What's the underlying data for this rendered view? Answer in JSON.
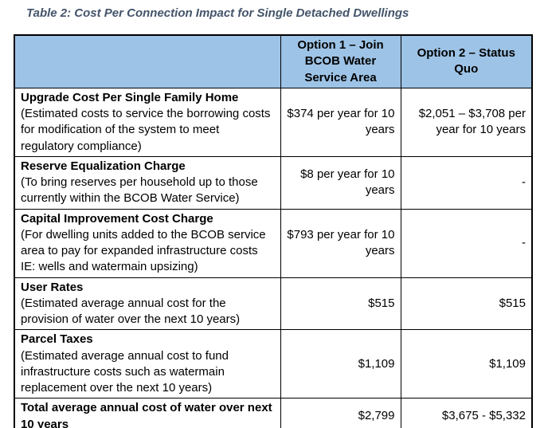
{
  "caption": "Table 2: Cost Per Connection Impact for Single Detached Dwellings",
  "table": {
    "headers": [
      "",
      "Option 1 – Join BCOB Water Service Area",
      "Option 2 – Status Quo"
    ],
    "rows": [
      {
        "label": "Upgrade Cost Per Single Family Home",
        "desc": "(Estimated costs to service the borrowing costs for modification of the system to meet regulatory compliance)",
        "opt1": "$374 per year for 10 years",
        "opt2": "$2,051 – $3,708 per year for 10 years"
      },
      {
        "label": "Reserve Equalization Charge",
        "desc": "(To bring reserves per household up to those currently within the BCOB Water Service)",
        "opt1": "$8 per year for 10 years",
        "opt2": "-"
      },
      {
        "label": "Capital Improvement Cost Charge",
        "desc": "(For dwelling units added to the BCOB service area to pay for expanded infrastructure costs IE: wells and watermain upsizing)",
        "opt1": "$793 per year for 10 years",
        "opt2": "-"
      },
      {
        "label": "User Rates",
        "desc": "(Estimated average annual cost for the provision of water over the next 10 years)",
        "opt1": "$515",
        "opt2": "$515"
      },
      {
        "label": "Parcel Taxes",
        "desc": "(Estimated average annual cost to fund infrastructure costs such as watermain replacement over the next 10 years)",
        "opt1": "$1,109",
        "opt2": "$1,109"
      },
      {
        "label": "Total average annual cost of water over next 10 years",
        "desc": "",
        "opt1": "$2,799",
        "opt2": "$3,675 - $5,332"
      }
    ]
  },
  "colors": {
    "header_bg": "#9DC3E6",
    "caption_color": "#44546A",
    "border": "#000000"
  }
}
